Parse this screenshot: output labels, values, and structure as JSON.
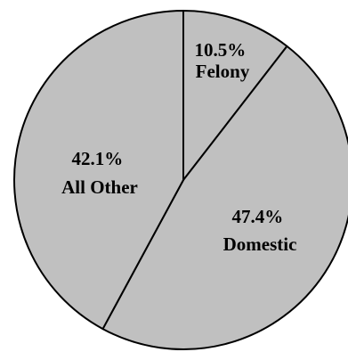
{
  "chart_data": {
    "type": "pie",
    "start_angle_deg": 0,
    "direction": "clockwise",
    "slice_color": "#c0c0c0",
    "border_color": "#000000",
    "slices": [
      {
        "label": "Felony",
        "value": 10.5,
        "percent_label": "10.5%"
      },
      {
        "label": "Domestic",
        "value": 47.4,
        "percent_label": "47.4%"
      },
      {
        "label": "All Other",
        "value": 42.1,
        "percent_label": "42.1%"
      }
    ]
  }
}
